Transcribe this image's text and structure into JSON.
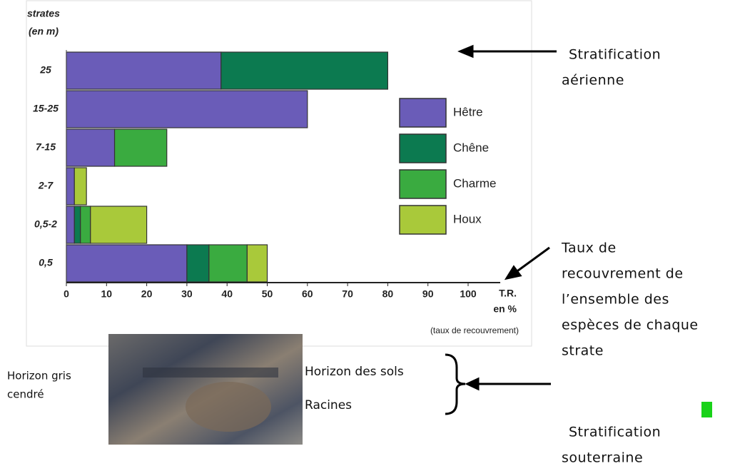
{
  "chart_data": {
    "type": "stacked_barh",
    "y_label_lines": [
      "strates",
      "(en m)"
    ],
    "x_label_lines": [
      "T.R.",
      "en %"
    ],
    "x_sublabel": "(taux de recouvrement)",
    "categories": [
      "25",
      "15-25",
      "7-15",
      "2-7",
      "0,5-2",
      "0,5"
    ],
    "series": [
      {
        "name": "Hêtre",
        "color": "#6a5cb8",
        "values": [
          38.5,
          60,
          12,
          2,
          2,
          30
        ]
      },
      {
        "name": "Chêne",
        "color": "#0c7a50",
        "values": [
          41.5,
          0,
          0,
          0,
          1.5,
          5.5
        ]
      },
      {
        "name": "Charme",
        "color": "#3aab40",
        "values": [
          0,
          0,
          13,
          0,
          2.5,
          9.5
        ]
      },
      {
        "name": "Houx",
        "color": "#a9c93a",
        "values": [
          0,
          0,
          0,
          3,
          14,
          5
        ]
      }
    ],
    "xlim": [
      0,
      108
    ],
    "xticks": [
      0,
      10,
      20,
      30,
      40,
      50,
      60,
      70,
      80,
      90,
      100
    ]
  },
  "annotations": {
    "aerial": [
      "Stratification",
      "aérienne"
    ],
    "coverage": [
      "Taux de",
      "recouvrement de",
      "l’ensemble des",
      "espèces de chaque",
      "strate"
    ],
    "grey_horizon": [
      "Horizon gris",
      "cendré"
    ],
    "soil_horizon": "Horizon des sols",
    "roots": "Racines",
    "underground": [
      "Stratification",
      "souterraine"
    ]
  }
}
